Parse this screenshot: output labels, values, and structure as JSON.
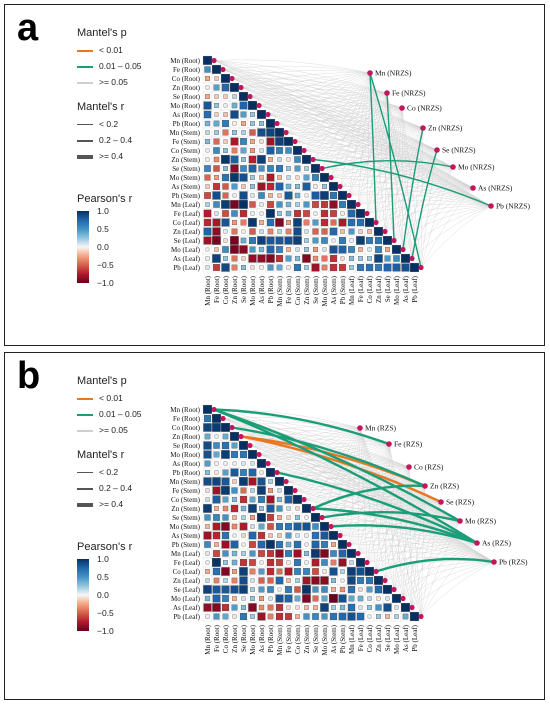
{
  "panels": [
    {
      "letter": "a",
      "mantel_p_title": "Mantel's p",
      "mantel_p_items": [
        "< 0.01",
        "0.01 – 0.05",
        ">= 0.05"
      ],
      "mantel_r_title": "Mantel's r",
      "mantel_r_items": [
        "< 0.2",
        "0.2 – 0.4",
        ">= 0.4"
      ],
      "pearson_title": "Pearson's r",
      "pearson_ticks": [
        "1.0",
        "0.5",
        "0.0",
        "−0.5",
        "−1.0"
      ],
      "env_vars": [
        "Mn (NRZS)",
        "Fe (NRZS)",
        "Co (NRZS)",
        "Zn (NRZS)",
        "Se (NRZS)",
        "Mo (NRZS)",
        "As (NRZS)",
        "Pb (NRZS)"
      ]
    },
    {
      "letter": "b",
      "mantel_p_title": "Mantel's p",
      "mantel_p_items": [
        "< 0.01",
        "0.01 – 0.05",
        ">= 0.05"
      ],
      "mantel_r_title": "Mantel's r",
      "mantel_r_items": [
        "< 0.2",
        "0.2 – 0.4",
        ">= 0.4"
      ],
      "pearson_title": "Pearson's r",
      "pearson_ticks": [
        "1.0",
        "0.5",
        "0.0",
        "−0.5",
        "−1.0"
      ],
      "env_vars": [
        "Mn (RZS)",
        "Fe (RZS)",
        "Co (RZS)",
        "Zn (RZS)",
        "Se (RZS)",
        "Mo (RZS)",
        "As (RZS)",
        "Pb (RZS)"
      ]
    }
  ],
  "matrix_vars": [
    "Mn (Root)",
    "Fe (Root)",
    "Co (Root)",
    "Zn (Root)",
    "Se (Root)",
    "Mo (Root)",
    "As (Root)",
    "Pb (Root)",
    "Mn (Stem)",
    "Fe (Stem)",
    "Co (Stem)",
    "Zn (Stem)",
    "Se (Stem)",
    "Mo (Stem)",
    "As (Stem)",
    "Pb (Stem)",
    "Mn (Leaf)",
    "Fe (Leaf)",
    "Co (Leaf)",
    "Zn (Leaf)",
    "Se (Leaf)",
    "Mo (Leaf)",
    "As (Leaf)",
    "Pb (Leaf)"
  ],
  "colors": {
    "p_lt_001": "#e87722",
    "p_001_005": "#1a9e77",
    "p_ge_005": "#cfcfcf",
    "node": "#c2185b",
    "pos_strong": "#2166ac",
    "neg_strong": "#b2182b"
  },
  "chart_data": {
    "type": "heatmap",
    "panels": [
      {
        "panel": "a",
        "significant_links": [
          {
            "from": "Mn (NRZS)",
            "to": "Pb (Leaf)",
            "p": "0.01 – 0.05",
            "r": "< 0.2"
          },
          {
            "from": "Fe (NRZS)",
            "to": "Se (Leaf)",
            "p": "0.01 – 0.05",
            "r": "< 0.2"
          },
          {
            "from": "Mn (NRZS)",
            "to": "Co (Leaf)",
            "p": "0.01 – 0.05",
            "r": "< 0.2"
          },
          {
            "from": "Se (NRZS)",
            "to": "As (Leaf)",
            "p": "0.01 – 0.05",
            "r": "< 0.2"
          },
          {
            "from": "Zn (NRZS)",
            "to": "Mo (Leaf)",
            "p": "0.01 – 0.05",
            "r": "< 0.2"
          },
          {
            "from": "Mo (NRZS)",
            "to": "Se (Stem)",
            "p": "0.01 – 0.05",
            "r": "< 0.2"
          },
          {
            "from": "Pb (NRZS)",
            "to": "Zn (Stem)",
            "p": "0.01 – 0.05",
            "r": "< 0.2"
          }
        ]
      },
      {
        "panel": "b",
        "significant_links": [
          {
            "from": "Zn (RZS)",
            "to": "Zn (Root)",
            "p": "< 0.01",
            "r": "0.2 – 0.4"
          },
          {
            "from": "Se (RZS)",
            "to": "Zn (Root)",
            "p": "< 0.01",
            "r": "0.2 – 0.4"
          },
          {
            "from": "Fe (RZS)",
            "to": "Mn (Root)",
            "p": "0.01 – 0.05",
            "r": "0.2 – 0.4"
          },
          {
            "from": "Zn (RZS)",
            "to": "Co (Root)",
            "p": "0.01 – 0.05",
            "r": "0.2 – 0.4"
          },
          {
            "from": "Mo (RZS)",
            "to": "Mn (Root)",
            "p": "0.01 – 0.05",
            "r": "0.2 – 0.4"
          },
          {
            "from": "As (RZS)",
            "to": "Mn (Root)",
            "p": "0.01 – 0.05",
            "r": "0.2 – 0.4"
          },
          {
            "from": "As (RZS)",
            "to": "Pb (Root)",
            "p": "0.01 – 0.05",
            "r": "0.2 – 0.4"
          },
          {
            "from": "As (RZS)",
            "to": "Zn (Stem)",
            "p": "0.01 – 0.05",
            "r": "0.2 – 0.4"
          },
          {
            "from": "As (RZS)",
            "to": "Mo (Stem)",
            "p": "0.01 – 0.05",
            "r": "0.2 – 0.4"
          },
          {
            "from": "Zn (RZS)",
            "to": "Zn (Stem)",
            "p": "0.01 – 0.05",
            "r": "0.2 – 0.4"
          },
          {
            "from": "Pb (RZS)",
            "to": "Co (Leaf)",
            "p": "0.01 – 0.05",
            "r": "0.2 – 0.4"
          },
          {
            "from": "Mo (RZS)",
            "to": "Se (Stem)",
            "p": "0.01 – 0.05",
            "r": "0.2 – 0.4"
          }
        ]
      }
    ]
  }
}
